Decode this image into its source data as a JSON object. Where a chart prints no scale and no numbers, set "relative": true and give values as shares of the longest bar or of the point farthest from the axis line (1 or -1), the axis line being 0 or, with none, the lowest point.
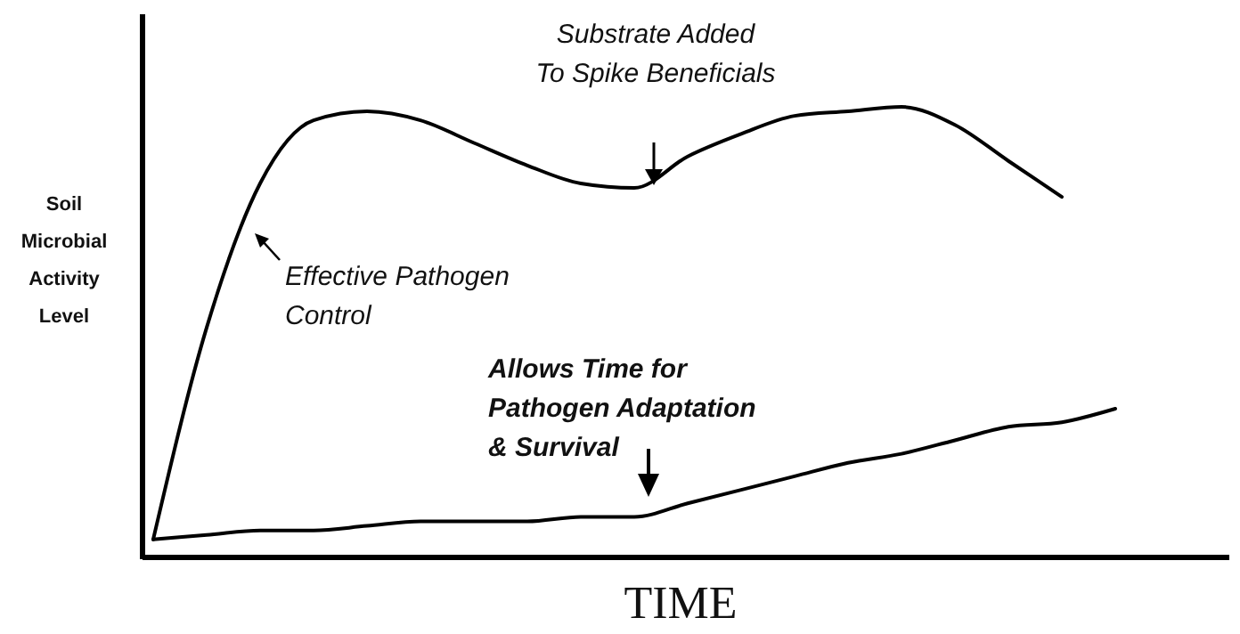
{
  "chart_data": {
    "type": "line",
    "relative": true,
    "xlabel": "TIME",
    "ylabel": "Soil\nMicrobial\nActivity\nLevel",
    "categories": [
      null,
      null,
      null,
      null,
      null,
      null,
      null,
      null,
      null,
      null,
      null,
      null,
      null,
      null,
      null,
      null,
      null,
      null,
      null
    ],
    "series": [
      {
        "color": "#000000",
        "values": [
          0.04,
          0.51,
          0.83,
          0.97,
          0.99,
          0.97,
          0.92,
          0.87,
          0.83,
          0.82,
          0.89,
          0.94,
          0.98,
          0.99,
          1.0,
          0.96,
          0.88,
          0.8,
          null
        ]
      },
      {
        "color": "#000000",
        "values": [
          0.04,
          0.05,
          0.06,
          0.06,
          0.07,
          0.08,
          0.08,
          0.08,
          0.09,
          0.09,
          0.12,
          0.15,
          0.18,
          0.21,
          0.23,
          0.26,
          0.29,
          0.3,
          0.33
        ]
      }
    ],
    "annotations": [
      "Substrate Added\nTo Spike Beneficials",
      "Effective Pathogen\nControl",
      "Allows Time for\nPathogen Adaptation\n& Survival"
    ],
    "marker": "none",
    "line_style": "solid"
  }
}
